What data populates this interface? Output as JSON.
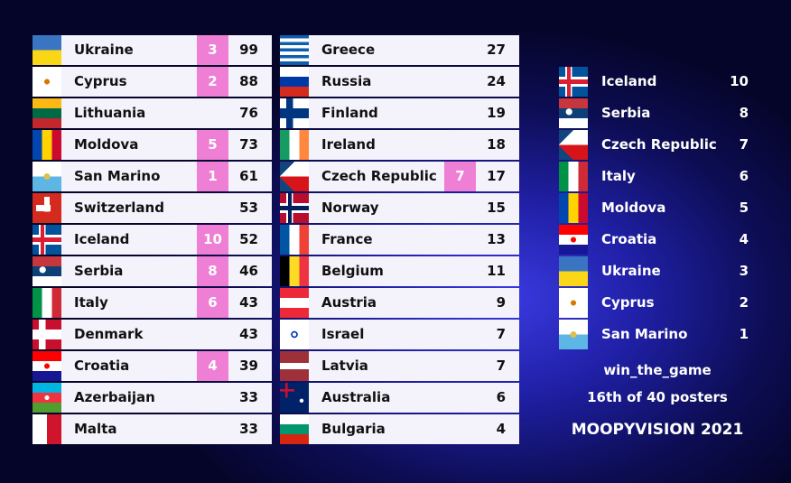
{
  "left_board": [
    {
      "country": "Ukraine",
      "points": 3,
      "total": 99
    },
    {
      "country": "Cyprus",
      "points": 2,
      "total": 88
    },
    {
      "country": "Lithuania",
      "total": 76
    },
    {
      "country": "Moldova",
      "points": 5,
      "total": 73
    },
    {
      "country": "San Marino",
      "points": 1,
      "total": 61
    },
    {
      "country": "Switzerland",
      "total": 53
    },
    {
      "country": "Iceland",
      "points": 10,
      "total": 52
    },
    {
      "country": "Serbia",
      "points": 8,
      "total": 46
    },
    {
      "country": "Italy",
      "points": 6,
      "total": 43
    },
    {
      "country": "Denmark",
      "total": 43
    },
    {
      "country": "Croatia",
      "points": 4,
      "total": 39
    },
    {
      "country": "Azerbaijan",
      "total": 33
    },
    {
      "country": "Malta",
      "total": 33
    }
  ],
  "middle_board": [
    {
      "country": "Greece",
      "total": 27
    },
    {
      "country": "Russia",
      "total": 24
    },
    {
      "country": "Finland",
      "total": 19
    },
    {
      "country": "Ireland",
      "total": 18
    },
    {
      "country": "Czech Republic",
      "points": 7,
      "total": 17
    },
    {
      "country": "Norway",
      "total": 15
    },
    {
      "country": "France",
      "total": 13
    },
    {
      "country": "Belgium",
      "total": 11
    },
    {
      "country": "Austria",
      "total": 9
    },
    {
      "country": "Israel",
      "total": 7
    },
    {
      "country": "Latvia",
      "total": 7
    },
    {
      "country": "Australia",
      "total": 6
    },
    {
      "country": "Bulgaria",
      "total": 4
    }
  ],
  "votes_given": [
    {
      "country": "Iceland",
      "points": 10
    },
    {
      "country": "Serbia",
      "points": 8
    },
    {
      "country": "Czech Republic",
      "points": 7
    },
    {
      "country": "Italy",
      "points": 6
    },
    {
      "country": "Moldova",
      "points": 5
    },
    {
      "country": "Croatia",
      "points": 4
    },
    {
      "country": "Ukraine",
      "points": 3
    },
    {
      "country": "Cyprus",
      "points": 2
    },
    {
      "country": "San Marino",
      "points": 1
    }
  ],
  "footer": {
    "user": "win_the_game",
    "rank": "16th of 40 posters",
    "brand": "MOOPYVISION 2021"
  }
}
